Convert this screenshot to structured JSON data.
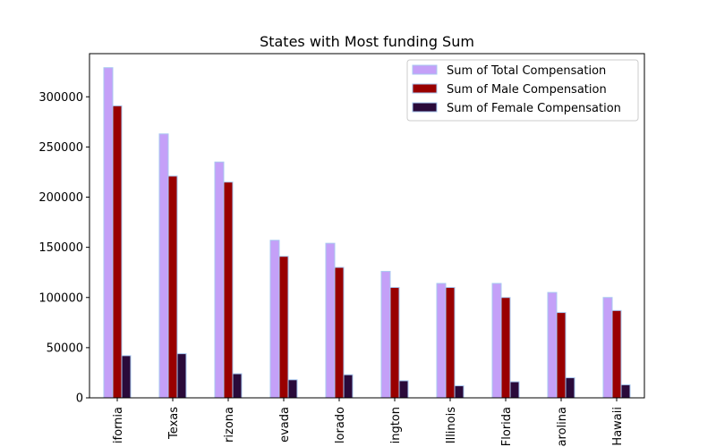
{
  "chart_data": {
    "type": "bar",
    "title": "States with Most funding Sum",
    "xlabel": "",
    "ylabel": "",
    "categories": [
      "California",
      "Texas",
      "Arizona",
      "Nevada",
      "Colorado",
      "Washington",
      "Illinois",
      "Florida",
      "North Carolina",
      "Hawaii"
    ],
    "category_tick_labels": [
      "ifornia",
      "Texas",
      "rizona",
      "evada",
      "lorado",
      "ington",
      "Illinois",
      "Florida",
      "arolina",
      "Hawaii"
    ],
    "ylim": [
      0,
      343000
    ],
    "yticks": [
      0,
      50000,
      100000,
      150000,
      200000,
      250000,
      300000
    ],
    "ytick_labels": [
      "0",
      "50000",
      "100000",
      "150000",
      "200000",
      "250000",
      "300000"
    ],
    "legend_position": "top-right",
    "grid": false,
    "series": [
      {
        "name": "Sum of Total Compensation",
        "color": "#c4a0f8",
        "edge": "#a8c8f0",
        "values": [
          329000,
          263000,
          235000,
          157000,
          154000,
          126000,
          114000,
          114000,
          105000,
          100000
        ]
      },
      {
        "name": "Sum of Male Compensation",
        "color": "#990000",
        "edge": "#a8c8f0",
        "values": [
          291000,
          221000,
          215000,
          141000,
          130000,
          110000,
          110000,
          100000,
          85000,
          87000
        ]
      },
      {
        "name": "Sum of Female Compensation",
        "color": "#2a0a3a",
        "edge": "#a8c8f0",
        "values": [
          42000,
          44000,
          24000,
          18000,
          23000,
          17000,
          12000,
          16000,
          20000,
          13000
        ]
      }
    ]
  }
}
